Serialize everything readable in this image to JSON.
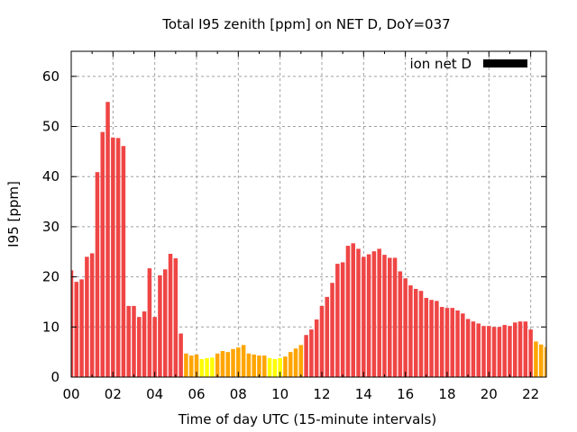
{
  "chart_data": {
    "type": "bar",
    "title": "Total I95 zenith [ppm] on NET D, DoY=037",
    "xlabel": "Time of day UTC (15-minute intervals)",
    "ylabel": "I95 [ppm]",
    "xlim": [
      0,
      22.75
    ],
    "ylim": [
      0,
      65
    ],
    "grid": true,
    "legend_position": "top-right",
    "x_ticks": [
      0,
      2,
      4,
      6,
      8,
      10,
      12,
      14,
      16,
      18,
      20,
      22
    ],
    "x_tick_labels": [
      "00",
      "02",
      "04",
      "06",
      "08",
      "10",
      "12",
      "14",
      "16",
      "18",
      "20",
      "22"
    ],
    "y_ticks": [
      0,
      10,
      20,
      30,
      40,
      50,
      60
    ],
    "y_tick_labels": [
      "0",
      "10",
      "20",
      "30",
      "40",
      "50",
      "60"
    ],
    "interval_hours": 0.25,
    "color_thresholds": {
      "yellow_below": 4,
      "orange_below": 8
    },
    "colors": {
      "red": "#ef4545",
      "orange": "#ffa500",
      "yellow": "#ffff00",
      "legend": "#000000",
      "grid": "#a0a0a0"
    },
    "series": [
      {
        "name": "ion net D",
        "values": [
          21.3,
          19.0,
          19.5,
          24.0,
          24.7,
          40.9,
          48.9,
          54.9,
          47.8,
          47.7,
          46.1,
          14.2,
          14.2,
          12.0,
          13.1,
          21.7,
          12.0,
          20.3,
          21.5,
          24.6,
          23.7,
          8.7,
          4.7,
          4.3,
          4.5,
          3.6,
          3.8,
          3.9,
          4.7,
          5.2,
          5.0,
          5.6,
          5.9,
          6.4,
          4.7,
          4.5,
          4.3,
          4.3,
          3.8,
          3.6,
          3.8,
          4.1,
          5.0,
          5.7,
          6.4,
          8.4,
          9.5,
          11.5,
          14.2,
          16.0,
          18.8,
          22.6,
          22.9,
          26.2,
          26.7,
          25.6,
          24.0,
          24.5,
          25.1,
          25.6,
          24.4,
          23.8,
          23.8,
          21.1,
          19.7,
          18.3,
          17.6,
          17.2,
          15.8,
          15.4,
          15.2,
          14.0,
          13.8,
          13.8,
          13.3,
          12.7,
          11.6,
          11.1,
          10.7,
          10.2,
          10.2,
          10.0,
          10.0,
          10.4,
          10.2,
          10.9,
          11.1,
          11.1,
          9.5,
          7.1,
          6.5,
          6.0
        ]
      }
    ]
  }
}
